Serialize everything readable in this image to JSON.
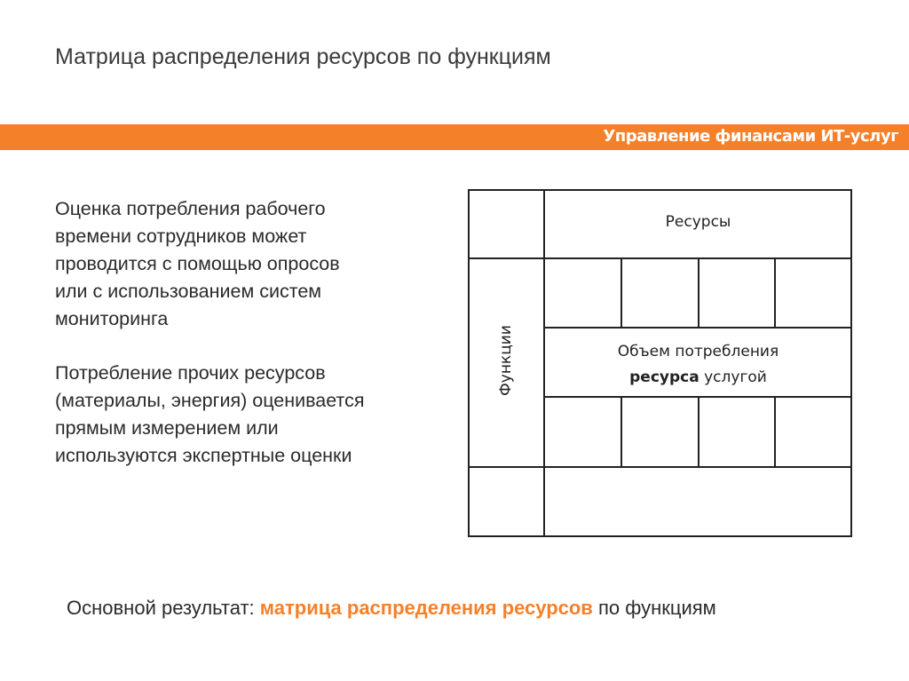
{
  "slide": {
    "title": "Матрица распределения ресурсов по функциям",
    "section_band": "Управление финансами ИТ-услуг",
    "paragraphs": [
      [
        "Оценка потребления рабочего",
        "времени сотрудников может",
        "проводится с помощью опросов",
        "или с использованием систем",
        "мониторинга"
      ],
      [
        "Потребление прочих ресурсов",
        "(материалы, энергия) оценивается",
        "прямым измерением или",
        "используются экспертные оценки"
      ]
    ],
    "matrix": {
      "column_header": "Ресурсы",
      "row_header": "Функции",
      "center_line1": "Объем потребления",
      "center_bold": "ресурса",
      "center_rest": " услугой"
    },
    "result": {
      "prefix": "Основной результат: ",
      "highlight": "матрица распределения ресурсов",
      "suffix": " по функциям"
    },
    "colors": {
      "accent": "#f5802a",
      "text": "#2b2b2b"
    }
  }
}
